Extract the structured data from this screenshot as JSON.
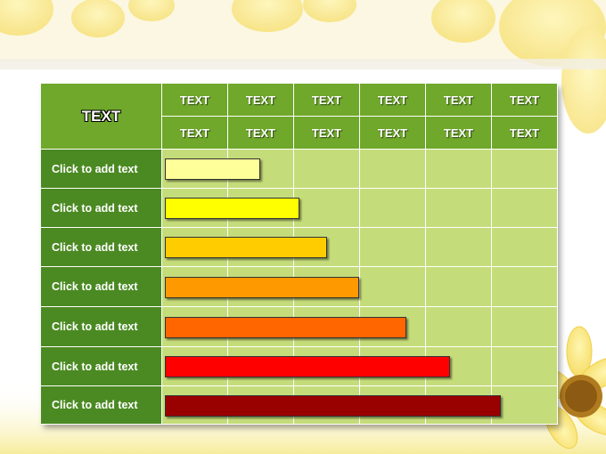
{
  "corner_label": "TEXT",
  "header_rows": [
    [
      "TEXT",
      "TEXT",
      "TEXT",
      "TEXT",
      "TEXT",
      "TEXT"
    ],
    [
      "TEXT",
      "TEXT",
      "TEXT",
      "TEXT",
      "TEXT",
      "TEXT"
    ]
  ],
  "rows": [
    {
      "label": "Click to add text",
      "progress": 0.24,
      "color": "#ffff99"
    },
    {
      "label": "Click to add text",
      "progress": 0.34,
      "color": "#ffff00"
    },
    {
      "label": "Click to add text",
      "progress": 0.41,
      "color": "#ffcc00"
    },
    {
      "label": "Click to add text",
      "progress": 0.49,
      "color": "#ff9900"
    },
    {
      "label": "Click to add text",
      "progress": 0.61,
      "color": "#ff6600"
    },
    {
      "label": "Click to add text",
      "progress": 0.72,
      "color": "#ff0000"
    },
    {
      "label": "Click to add text",
      "progress": 0.85,
      "color": "#990000"
    }
  ],
  "colors": {
    "header_green": "#6fa82a",
    "row_label_green": "#4b8a22",
    "grid_green": "#c5dc7a"
  },
  "decorations": [
    "sunflower-petals-top",
    "sunflower-bottom-right",
    "honeycomb-footer"
  ]
}
